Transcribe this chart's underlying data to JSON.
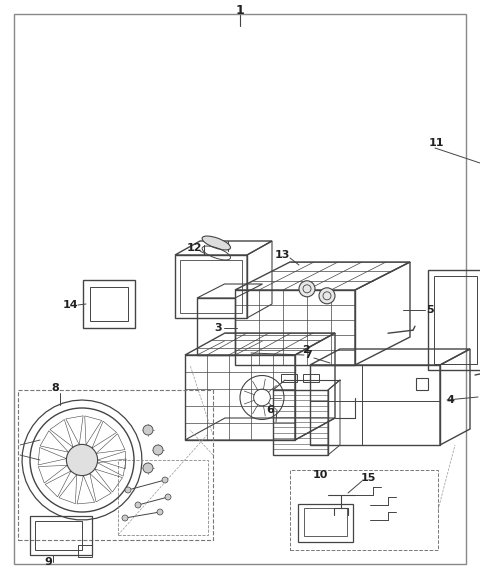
{
  "bg_color": "#ffffff",
  "line_color": "#444444",
  "label_color": "#222222",
  "figsize": [
    4.8,
    5.78
  ],
  "dpi": 100
}
